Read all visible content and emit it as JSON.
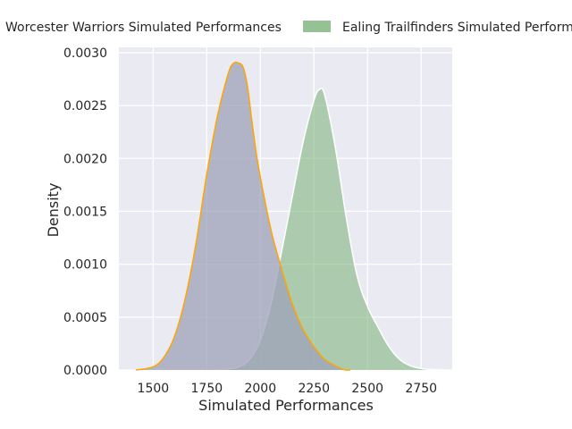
{
  "chart_data": {
    "type": "area",
    "title": "",
    "xlabel": "Simulated Performances",
    "ylabel": "Density",
    "xlim": [
      1340,
      2895
    ],
    "ylim": [
      0,
      0.00305
    ],
    "x_ticks": [
      1500,
      1750,
      2000,
      2250,
      2500,
      2750
    ],
    "x_tick_labels": [
      "1500",
      "1750",
      "2000",
      "2250",
      "2500",
      "2750"
    ],
    "y_ticks": [
      0,
      0.0005,
      0.001,
      0.0015,
      0.002,
      0.0025,
      0.003
    ],
    "y_tick_labels": [
      "0.0000",
      "0.0005",
      "0.0010",
      "0.0015",
      "0.0020",
      "0.0025",
      "0.0030"
    ],
    "grid": true,
    "legend_position": "top",
    "series": [
      {
        "name": "Worcester Warriors Simulated Performances",
        "fill_color": "#9da2b8",
        "edge_color": "#ffa500",
        "x": [
          1420,
          1500,
          1550,
          1600,
          1650,
          1700,
          1750,
          1800,
          1850,
          1875,
          1900,
          1920,
          1940,
          1960,
          1980,
          2000,
          2050,
          2100,
          2150,
          2200,
          2250,
          2300,
          2350,
          2380,
          2400,
          2420
        ],
        "y": [
          0,
          3e-05,
          0.00012,
          0.00032,
          0.00068,
          0.0012,
          0.00185,
          0.0024,
          0.0028,
          0.0029,
          0.0029,
          0.00286,
          0.00268,
          0.00236,
          0.00206,
          0.00182,
          0.00132,
          0.00095,
          0.00062,
          0.00038,
          0.00022,
          0.0001,
          4e-05,
          1e-05,
          0,
          0
        ]
      },
      {
        "name": "Ealing Trailfinders Simulated Performances",
        "fill_color": "#8aba88",
        "edge_color": "#ffffff",
        "x": [
          1800,
          1850,
          1900,
          1950,
          2000,
          2050,
          2100,
          2150,
          2200,
          2250,
          2275,
          2300,
          2350,
          2400,
          2450,
          2500,
          2550,
          2600,
          2650,
          2700,
          2750,
          2800,
          2870
        ],
        "y": [
          0,
          1e-05,
          3e-05,
          0.0001,
          0.00028,
          0.00063,
          0.00113,
          0.00165,
          0.00216,
          0.00255,
          0.00265,
          0.0026,
          0.0021,
          0.00145,
          0.0009,
          0.0006,
          0.0004,
          0.00022,
          0.0001,
          4e-05,
          1.5e-05,
          5e-06,
          0
        ]
      }
    ]
  }
}
